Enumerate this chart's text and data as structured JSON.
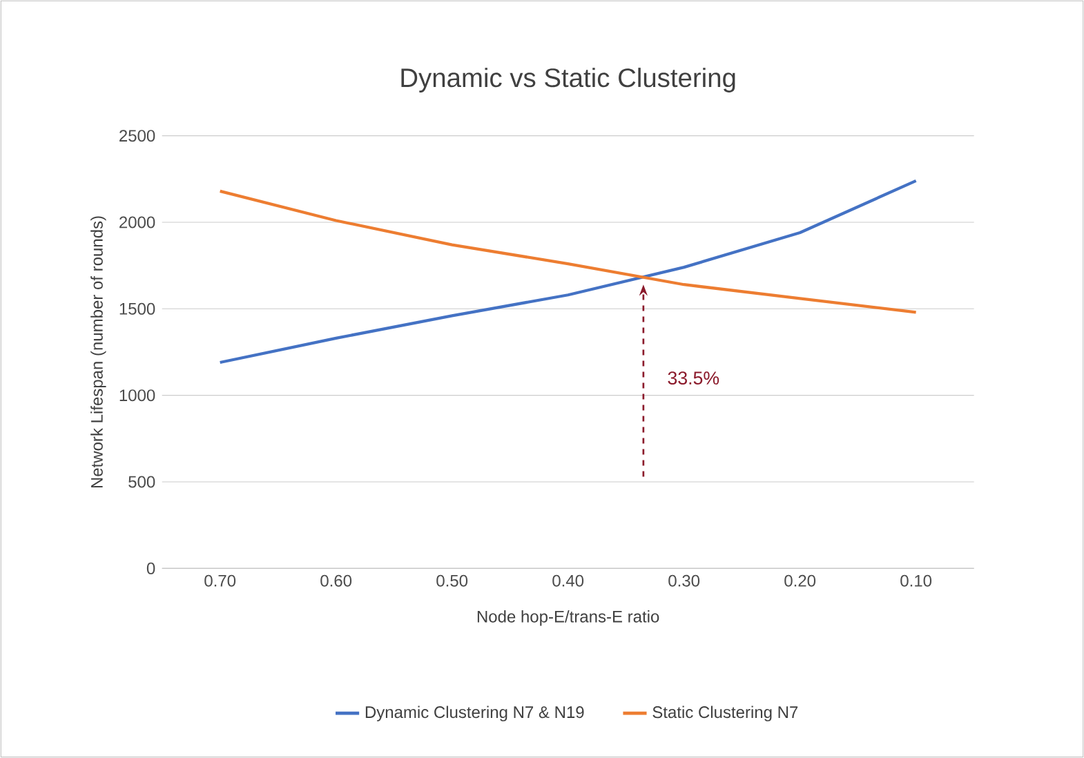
{
  "chart_data": {
    "type": "line",
    "title": "Dynamic vs Static Clustering",
    "xlabel": "Node hop-E/trans-E ratio",
    "ylabel": "Network Lifespan (number of rounds)",
    "categories": [
      "0.70",
      "0.60",
      "0.50",
      "0.40",
      "0.30",
      "0.20",
      "0.10"
    ],
    "series": [
      {
        "name": "Dynamic Clustering N7 & N19",
        "color": "#4472c4",
        "values": [
          1190,
          1330,
          1460,
          1580,
          1740,
          1940,
          2240
        ]
      },
      {
        "name": "Static Clustering N7",
        "color": "#ed7d31",
        "values": [
          2180,
          2010,
          1870,
          1760,
          1640,
          1560,
          1480
        ]
      }
    ],
    "ylim": [
      0,
      2500
    ],
    "yticks": [
      0,
      500,
      1000,
      1500,
      2000,
      2500
    ],
    "grid": "y",
    "legend": "bottom",
    "line_style": "solid",
    "annotations": [
      "33.5%"
    ]
  }
}
